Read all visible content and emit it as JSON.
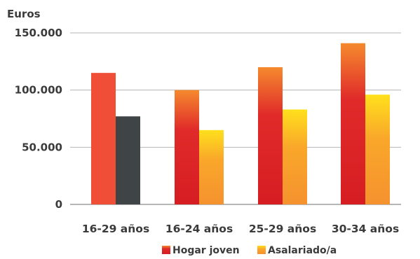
{
  "chart_data": {
    "type": "bar",
    "ylabel": "Euros",
    "ylim": [
      0,
      150000
    ],
    "yticks": [
      0,
      50000,
      100000,
      150000
    ],
    "ytick_labels": [
      "0",
      "50.000",
      "100.000",
      "150.000"
    ],
    "grid": true,
    "categories": [
      "16-29 años",
      "16-24 años",
      "25-29 años",
      "30-34 años"
    ],
    "series": [
      {
        "name": "Hogar joven",
        "values": [
          115000,
          100000,
          120000,
          141000
        ]
      },
      {
        "name": "Asalariado/a",
        "values": [
          77000,
          65000,
          83000,
          96000
        ]
      }
    ],
    "bar_colors": {
      "first_group": [
        "#f04e37",
        "#3f4447"
      ],
      "hogar_gradient": [
        "#f58a2e",
        "#e02a2a",
        "#d61e22"
      ],
      "asalariado_gradient": [
        "#ffe01c",
        "#f9a72a",
        "#f5922e"
      ]
    },
    "legend_position": "bottom"
  }
}
